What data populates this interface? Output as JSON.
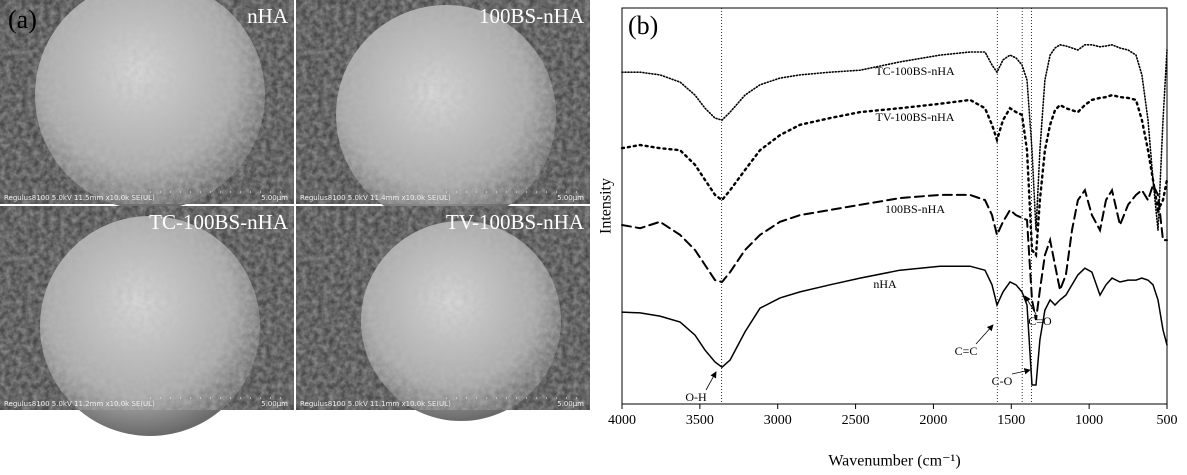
{
  "panel_a": {
    "label": "(a)",
    "images": [
      {
        "label": "nHA",
        "caption": "Regulus8100 5.0kV 11.5mm x10.0k SE(UL)",
        "scale": "5.00µm"
      },
      {
        "label": "100BS-nHA",
        "caption": "Regulus8100 5.0kV 11.4mm x10.0k SE(UL)",
        "scale": "5.00µm"
      },
      {
        "label": "TC-100BS-nHA",
        "caption": "Regulus8100 5.0kV 11.2mm x10.0k SE(UL)",
        "scale": "5.00µm"
      },
      {
        "label": "TV-100BS-nHA",
        "caption": "Regulus8100 5.0kV 11.1mm x10.0k SE(UL)",
        "scale": "5.00µm"
      }
    ]
  },
  "chart_data": {
    "type": "line",
    "panel_label": "(b)",
    "x_label": "Wavenumber (cm⁻¹)",
    "y_label": "Intensity",
    "xlim": [
      4000,
      500
    ],
    "xticks": [
      4000,
      3500,
      3000,
      2500,
      2000,
      1500,
      1000,
      500
    ],
    "ylim": [
      0,
      100
    ],
    "x": [
      4000,
      3884,
      3756,
      3627,
      3531,
      3467,
      3403,
      3358,
      3306,
      3210,
      3114,
      2985,
      2857,
      2664,
      2471,
      2215,
      1958,
      1765,
      1669,
      1624,
      1592,
      1553,
      1508,
      1470,
      1431,
      1399,
      1367,
      1341,
      1316,
      1284,
      1251,
      1219,
      1187,
      1149,
      1110,
      1072,
      1027,
      982,
      930,
      892,
      853,
      802,
      750,
      699,
      661,
      622,
      590,
      558,
      526,
      500
    ],
    "series": [
      {
        "name": "TC-100BS-nHA",
        "color": "#000000",
        "line_style": "dotted-fine",
        "values": [
          83.8,
          83.8,
          83.1,
          81.3,
          78.0,
          74.7,
          72.2,
          71.7,
          73.7,
          78.0,
          80.6,
          82.3,
          83.1,
          83.8,
          84.3,
          86.4,
          88.1,
          88.9,
          88.9,
          85.6,
          83.8,
          86.9,
          88.1,
          87.4,
          85.6,
          81.8,
          64.1,
          43.9,
          64.1,
          81.8,
          88.1,
          89.9,
          90.7,
          90.4,
          89.9,
          89.4,
          90.7,
          90.7,
          90.2,
          90.4,
          90.7,
          89.9,
          89.4,
          88.1,
          83.1,
          71.7,
          56.6,
          43.9,
          71.7,
          89.4
        ]
      },
      {
        "name": "TV-100BS-nHA",
        "color": "#000000",
        "line_style": "dotted",
        "values": [
          64.6,
          65.4,
          64.6,
          64.1,
          60.4,
          56.6,
          52.8,
          51.5,
          54.0,
          59.1,
          64.1,
          67.9,
          70.5,
          72.2,
          73.7,
          74.7,
          75.8,
          76.8,
          74.7,
          70.5,
          66.7,
          71.7,
          74.7,
          73.7,
          73.0,
          64.1,
          38.9,
          37.6,
          51.5,
          64.1,
          70.5,
          74.2,
          75.5,
          74.7,
          74.2,
          73.7,
          75.5,
          76.8,
          77.3,
          77.5,
          78.0,
          77.5,
          77.3,
          76.8,
          71.7,
          64.1,
          56.6,
          49.0,
          51.5,
          56.6
        ]
      },
      {
        "name": "100BS-nHA",
        "color": "#000000",
        "line_style": "dashed",
        "values": [
          45.2,
          44.4,
          46.0,
          42.7,
          38.9,
          35.1,
          31.3,
          30.8,
          33.3,
          38.9,
          42.7,
          46.0,
          47.7,
          49.0,
          50.3,
          52.0,
          52.8,
          52.8,
          51.5,
          47.7,
          42.7,
          46.0,
          49.0,
          47.7,
          47.0,
          46.5,
          26.3,
          21.2,
          28.8,
          37.6,
          41.4,
          35.1,
          28.8,
          32.6,
          43.9,
          51.5,
          54.0,
          47.7,
          43.9,
          51.5,
          54.0,
          45.2,
          50.3,
          52.8,
          54.0,
          51.5,
          55.3,
          52.8,
          41.4,
          41.4
        ]
      },
      {
        "name": "nHA",
        "color": "#000000",
        "line_style": "solid",
        "values": [
          23.2,
          23.0,
          22.2,
          20.7,
          17.4,
          13.6,
          10.6,
          9.3,
          11.1,
          18.2,
          24.2,
          26.8,
          28.3,
          30.1,
          31.8,
          33.8,
          34.8,
          34.8,
          33.8,
          30.1,
          25.0,
          28.3,
          30.8,
          30.1,
          28.3,
          25.0,
          4.8,
          4.8,
          16.2,
          23.7,
          26.3,
          25.0,
          26.3,
          27.5,
          30.1,
          32.6,
          34.3,
          33.3,
          27.5,
          30.1,
          31.8,
          30.8,
          31.3,
          31.3,
          31.8,
          31.3,
          30.1,
          26.3,
          18.7,
          14.9
        ]
      }
    ],
    "annotations": [
      {
        "text": "O-H",
        "x": 3360
      },
      {
        "text": "C=C",
        "x": 1590
      },
      {
        "text": "C=O",
        "x": 1430
      },
      {
        "text": "C-O",
        "x": 1370
      }
    ]
  }
}
